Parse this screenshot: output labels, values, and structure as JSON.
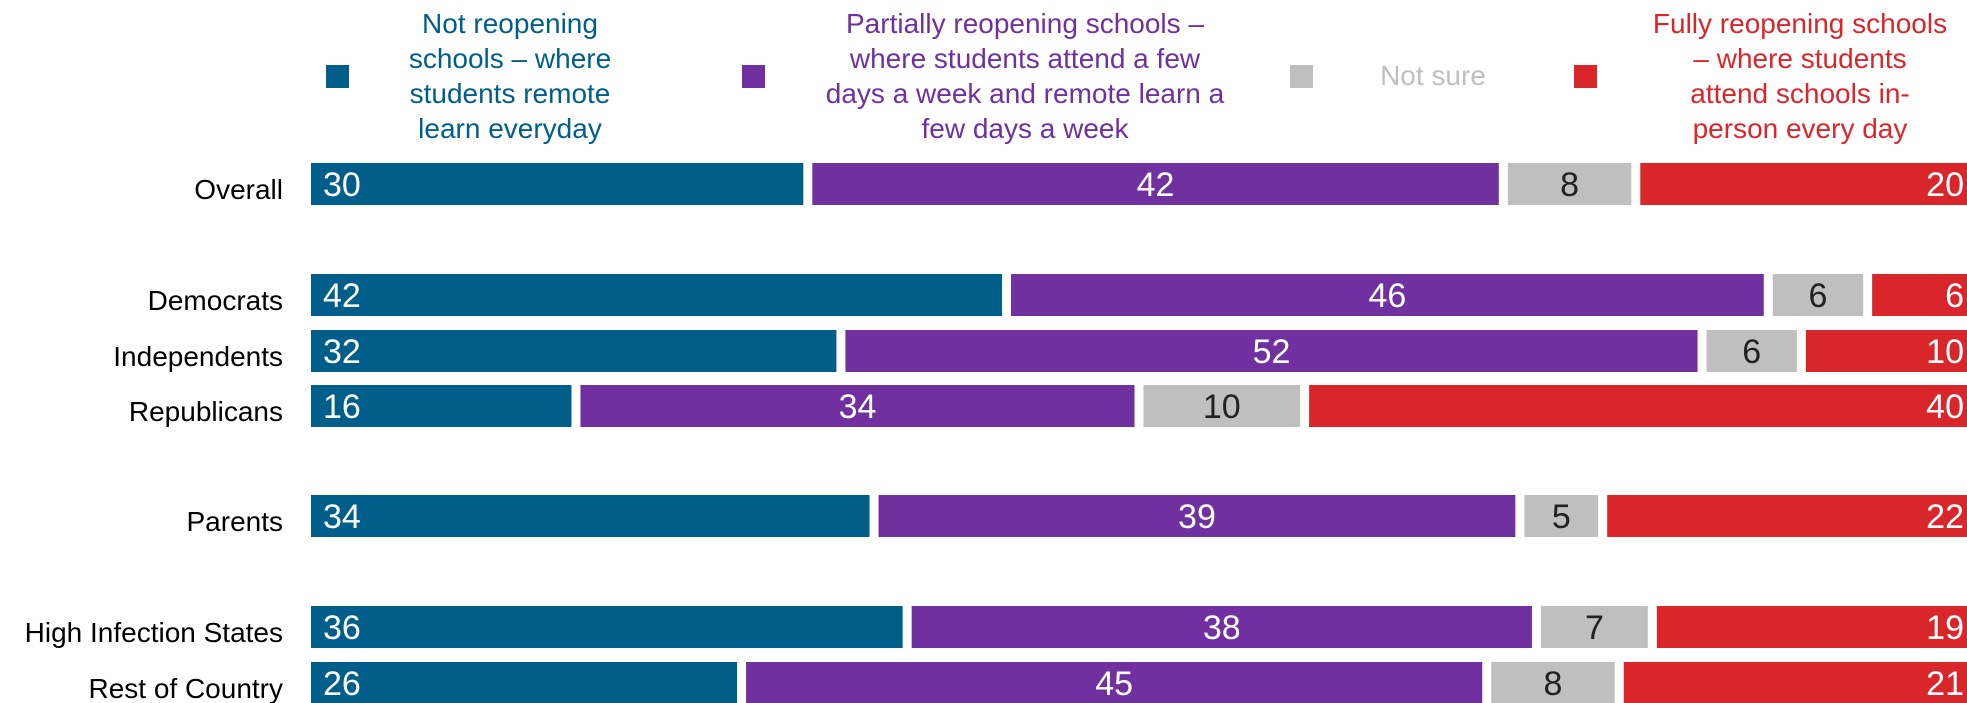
{
  "chart_data": {
    "type": "bar",
    "orientation": "horizontal",
    "stacked": true,
    "xlim": [
      0,
      100
    ],
    "legend_position": "top",
    "series": [
      {
        "name": "Not reopening schools – where students remote learn everyday",
        "legend_lines": [
          "Not reopening",
          "schools – where",
          "students remote",
          "learn everyday"
        ],
        "color": "#005e8a",
        "label_color": "#ffffff",
        "values": [
          30,
          42,
          32,
          16,
          34,
          36,
          26
        ]
      },
      {
        "name": "Partially reopening schools – where students attend a few days a week and remote learn a few days a week",
        "legend_lines": [
          "Partially reopening schools –",
          "where students attend a few",
          "days a week and remote learn a",
          "few days a week"
        ],
        "color": "#7030a0",
        "label_color": "#ffffff",
        "values": [
          42,
          46,
          52,
          34,
          39,
          38,
          45
        ]
      },
      {
        "name": "Not sure",
        "legend_lines": [
          "Not sure"
        ],
        "color": "#bfbfbf",
        "label_color": "#222222",
        "values": [
          8,
          6,
          6,
          10,
          5,
          7,
          8
        ]
      },
      {
        "name": "Fully reopening schools – where students attend schools in-person every day",
        "legend_lines": [
          "Fully reopening schools",
          "– where students",
          "attend schools in-",
          "person every day"
        ],
        "color": "#d9262b",
        "label_color": "#ffffff",
        "values": [
          20,
          6,
          10,
          40,
          22,
          19,
          21
        ]
      }
    ],
    "categories": [
      "Overall",
      "Democrats",
      "Independents",
      "Republicans",
      "Parents",
      "High Infection States",
      "Rest of Country"
    ]
  }
}
